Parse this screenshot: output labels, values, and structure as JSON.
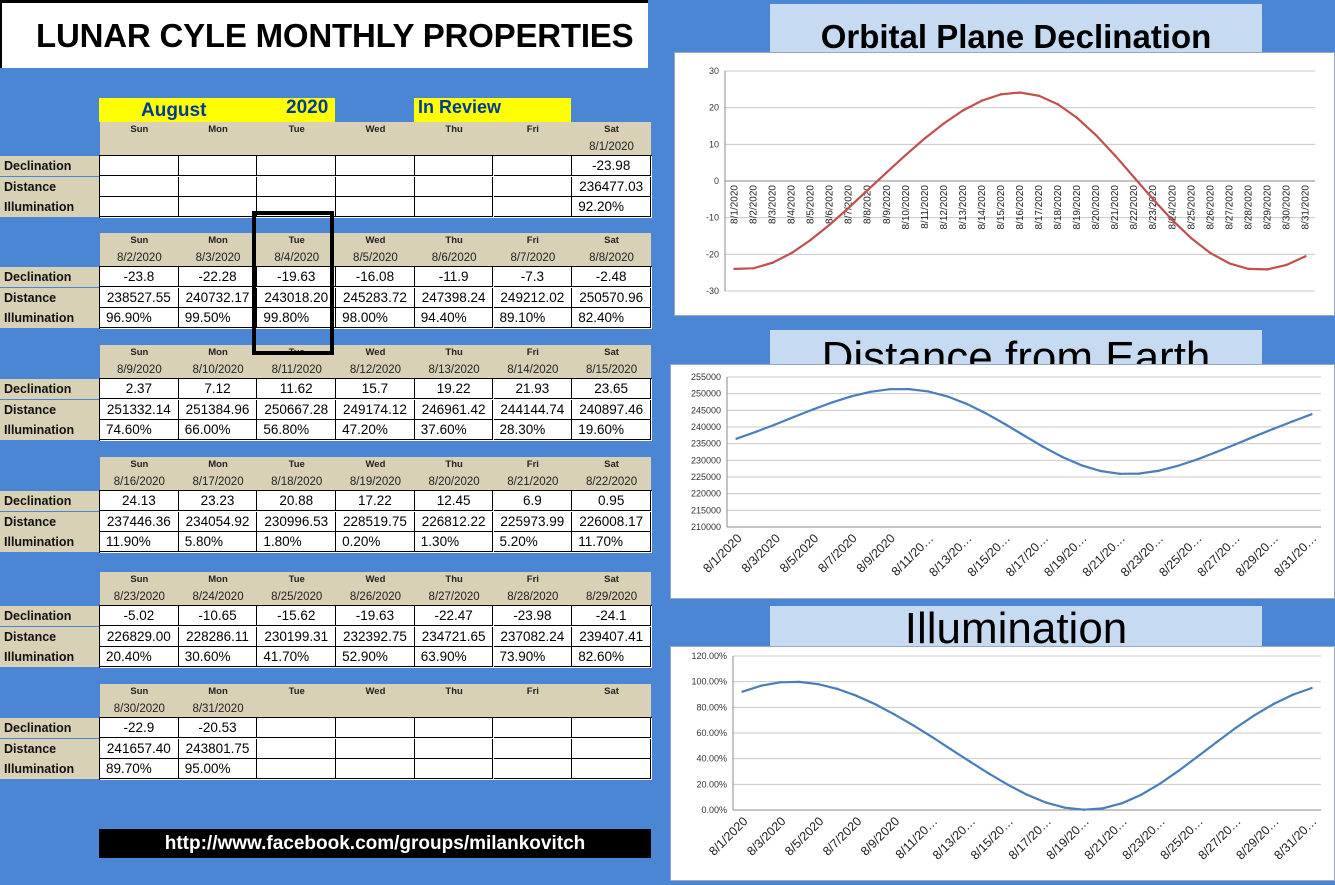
{
  "title": "LUNAR CYLE MONTHLY PROPERTIES",
  "header": {
    "month": "August",
    "year": "2020",
    "review": "In Review"
  },
  "days": [
    "Sun",
    "Mon",
    "Tue",
    "Wed",
    "Thu",
    "Fri",
    "Sat"
  ],
  "row_labels": [
    "Declination",
    "Distance",
    "Illumination"
  ],
  "weeks": [
    {
      "dates": [
        "",
        "",
        "",
        "",
        "",
        "",
        "8/1/2020"
      ],
      "declination": [
        "",
        "",
        "",
        "",
        "",
        "",
        "-23.98"
      ],
      "distance": [
        "",
        "",
        "",
        "",
        "",
        "",
        "236477.03"
      ],
      "illumination": [
        "",
        "",
        "",
        "",
        "",
        "",
        "92.20%"
      ]
    },
    {
      "dates": [
        "8/2/2020",
        "8/3/2020",
        "8/4/2020",
        "8/5/2020",
        "8/6/2020",
        "8/7/2020",
        "8/8/2020"
      ],
      "declination": [
        "-23.8",
        "-22.28",
        "-19.63",
        "-16.08",
        "-11.9",
        "-7.3",
        "-2.48"
      ],
      "distance": [
        "238527.55",
        "240732.17",
        "243018.20",
        "245283.72",
        "247398.24",
        "249212.02",
        "250570.96"
      ],
      "illumination": [
        "96.90%",
        "99.50%",
        "99.80%",
        "98.00%",
        "94.40%",
        "89.10%",
        "82.40%"
      ]
    },
    {
      "dates": [
        "8/9/2020",
        "8/10/2020",
        "8/11/2020",
        "8/12/2020",
        "8/13/2020",
        "8/14/2020",
        "8/15/2020"
      ],
      "declination": [
        "2.37",
        "7.12",
        "11.62",
        "15.7",
        "19.22",
        "21.93",
        "23.65"
      ],
      "distance": [
        "251332.14",
        "251384.96",
        "250667.28",
        "249174.12",
        "246961.42",
        "244144.74",
        "240897.46"
      ],
      "illumination": [
        "74.60%",
        "66.00%",
        "56.80%",
        "47.20%",
        "37.60%",
        "28.30%",
        "19.60%"
      ]
    },
    {
      "dates": [
        "8/16/2020",
        "8/17/2020",
        "8/18/2020",
        "8/19/2020",
        "8/20/2020",
        "8/21/2020",
        "8/22/2020"
      ],
      "declination": [
        "24.13",
        "23.23",
        "20.88",
        "17.22",
        "12.45",
        "6.9",
        "0.95"
      ],
      "distance": [
        "237446.36",
        "234054.92",
        "230996.53",
        "228519.75",
        "226812.22",
        "225973.99",
        "226008.17"
      ],
      "illumination": [
        "11.90%",
        "5.80%",
        "1.80%",
        "0.20%",
        "1.30%",
        "5.20%",
        "11.70%"
      ]
    },
    {
      "dates": [
        "8/23/2020",
        "8/24/2020",
        "8/25/2020",
        "8/26/2020",
        "8/27/2020",
        "8/28/2020",
        "8/29/2020"
      ],
      "declination": [
        "-5.02",
        "-10.65",
        "-15.62",
        "-19.63",
        "-22.47",
        "-23.98",
        "-24.1"
      ],
      "distance": [
        "226829.00",
        "228286.11",
        "230199.31",
        "232392.75",
        "234721.65",
        "237082.24",
        "239407.41"
      ],
      "illumination": [
        "20.40%",
        "30.60%",
        "41.70%",
        "52.90%",
        "63.90%",
        "73.90%",
        "82.60%"
      ]
    },
    {
      "dates": [
        "8/30/2020",
        "8/31/2020",
        "",
        "",
        "",
        "",
        ""
      ],
      "declination": [
        "-22.9",
        "-20.53",
        "",
        "",
        "",
        "",
        ""
      ],
      "distance": [
        "241657.40",
        "243801.75",
        "",
        "",
        "",
        "",
        ""
      ],
      "illumination": [
        "89.70%",
        "95.00%",
        "",
        "",
        "",
        "",
        ""
      ]
    }
  ],
  "url": "http://www.facebook.com/groups/milankovitch",
  "colors": {
    "background": "#4a86d4",
    "declination_line": "#c0504d",
    "line": "#4a7ebb",
    "header_yellow": "#ffff00",
    "label_bg": "#d8d1b5"
  },
  "chart_data": [
    {
      "type": "line",
      "title": "Orbital Plane Declination",
      "x": [
        "8/1/2020",
        "8/2/2020",
        "8/3/2020",
        "8/4/2020",
        "8/5/2020",
        "8/6/2020",
        "8/7/2020",
        "8/8/2020",
        "8/9/2020",
        "8/10/2020",
        "8/11/2020",
        "8/12/2020",
        "8/13/2020",
        "8/14/2020",
        "8/15/2020",
        "8/16/2020",
        "8/17/2020",
        "8/18/2020",
        "8/19/2020",
        "8/20/2020",
        "8/21/2020",
        "8/22/2020",
        "8/23/2020",
        "8/24/2020",
        "8/25/2020",
        "8/26/2020",
        "8/27/2020",
        "8/28/2020",
        "8/29/2020",
        "8/30/2020",
        "8/31/2020"
      ],
      "values": [
        -23.98,
        -23.8,
        -22.28,
        -19.63,
        -16.08,
        -11.9,
        -7.3,
        -2.48,
        2.37,
        7.12,
        11.62,
        15.7,
        19.22,
        21.93,
        23.65,
        24.13,
        23.23,
        20.88,
        17.22,
        12.45,
        6.9,
        0.95,
        -5.02,
        -10.65,
        -15.62,
        -19.63,
        -22.47,
        -23.98,
        -24.1,
        -22.9,
        -20.53
      ],
      "ylim": [
        -30,
        30
      ],
      "yticks": [
        "30",
        "20",
        "10",
        "0",
        "-10",
        "-20",
        "-30"
      ],
      "grid": true
    },
    {
      "type": "line",
      "title": "Distance from Earth",
      "x": [
        "8/1/2020",
        "8/2/2020",
        "8/3/2020",
        "8/4/2020",
        "8/5/2020",
        "8/6/2020",
        "8/7/2020",
        "8/8/2020",
        "8/9/2020",
        "8/10/2020",
        "8/11/2020",
        "8/12/2020",
        "8/13/2020",
        "8/14/2020",
        "8/15/2020",
        "8/16/2020",
        "8/17/2020",
        "8/18/2020",
        "8/19/2020",
        "8/20/2020",
        "8/21/2020",
        "8/22/2020",
        "8/23/2020",
        "8/24/2020",
        "8/25/2020",
        "8/26/2020",
        "8/27/2020",
        "8/28/2020",
        "8/29/2020",
        "8/30/2020",
        "8/31/2020"
      ],
      "xtick_labels": [
        "8/1/2020",
        "8/3/2020",
        "8/5/2020",
        "8/7/2020",
        "8/9/2020",
        "8/11/20…",
        "8/13/20…",
        "8/15/20…",
        "8/17/20…",
        "8/19/20…",
        "8/21/20…",
        "8/23/20…",
        "8/25/20…",
        "8/27/20…",
        "8/29/20…",
        "8/31/20…"
      ],
      "values": [
        236477.03,
        238527.55,
        240732.17,
        243018.2,
        245283.72,
        247398.24,
        249212.02,
        250570.96,
        251332.14,
        251384.96,
        250667.28,
        249174.12,
        246961.42,
        244144.74,
        240897.46,
        237446.36,
        234054.92,
        230996.53,
        228519.75,
        226812.22,
        225973.99,
        226008.17,
        226829.0,
        228286.11,
        230199.31,
        232392.75,
        234721.65,
        237082.24,
        239407.41,
        241657.4,
        243801.75
      ],
      "ylim": [
        210000,
        255000
      ],
      "yticks": [
        "255000",
        "250000",
        "245000",
        "240000",
        "235000",
        "230000",
        "225000",
        "220000",
        "215000",
        "210000"
      ],
      "grid": true
    },
    {
      "type": "line",
      "title": "Illumination",
      "x": [
        "8/1/2020",
        "8/2/2020",
        "8/3/2020",
        "8/4/2020",
        "8/5/2020",
        "8/6/2020",
        "8/7/2020",
        "8/8/2020",
        "8/9/2020",
        "8/10/2020",
        "8/11/2020",
        "8/12/2020",
        "8/13/2020",
        "8/14/2020",
        "8/15/2020",
        "8/16/2020",
        "8/17/2020",
        "8/18/2020",
        "8/19/2020",
        "8/20/2020",
        "8/21/2020",
        "8/22/2020",
        "8/23/2020",
        "8/24/2020",
        "8/25/2020",
        "8/26/2020",
        "8/27/2020",
        "8/28/2020",
        "8/29/2020",
        "8/30/2020",
        "8/31/2020"
      ],
      "xtick_labels": [
        "8/1/2020",
        "8/3/2020",
        "8/5/2020",
        "8/7/2020",
        "8/9/2020",
        "8/11/20…",
        "8/13/20…",
        "8/15/20…",
        "8/17/20…",
        "8/19/20…",
        "8/21/20…",
        "8/23/20…",
        "8/25/20…",
        "8/27/20…",
        "8/29/20…",
        "8/31/20…"
      ],
      "values": [
        92.2,
        96.9,
        99.5,
        99.8,
        98.0,
        94.4,
        89.1,
        82.4,
        74.6,
        66.0,
        56.8,
        47.2,
        37.6,
        28.3,
        19.6,
        11.9,
        5.8,
        1.8,
        0.2,
        1.3,
        5.2,
        11.7,
        20.4,
        30.6,
        41.7,
        52.9,
        63.9,
        73.9,
        82.6,
        89.7,
        95.0
      ],
      "ylim": [
        0,
        120
      ],
      "yticks": [
        "120.00%",
        "100.00%",
        "80.00%",
        "60.00%",
        "40.00%",
        "20.00%",
        "0.00%"
      ],
      "grid": true
    }
  ]
}
